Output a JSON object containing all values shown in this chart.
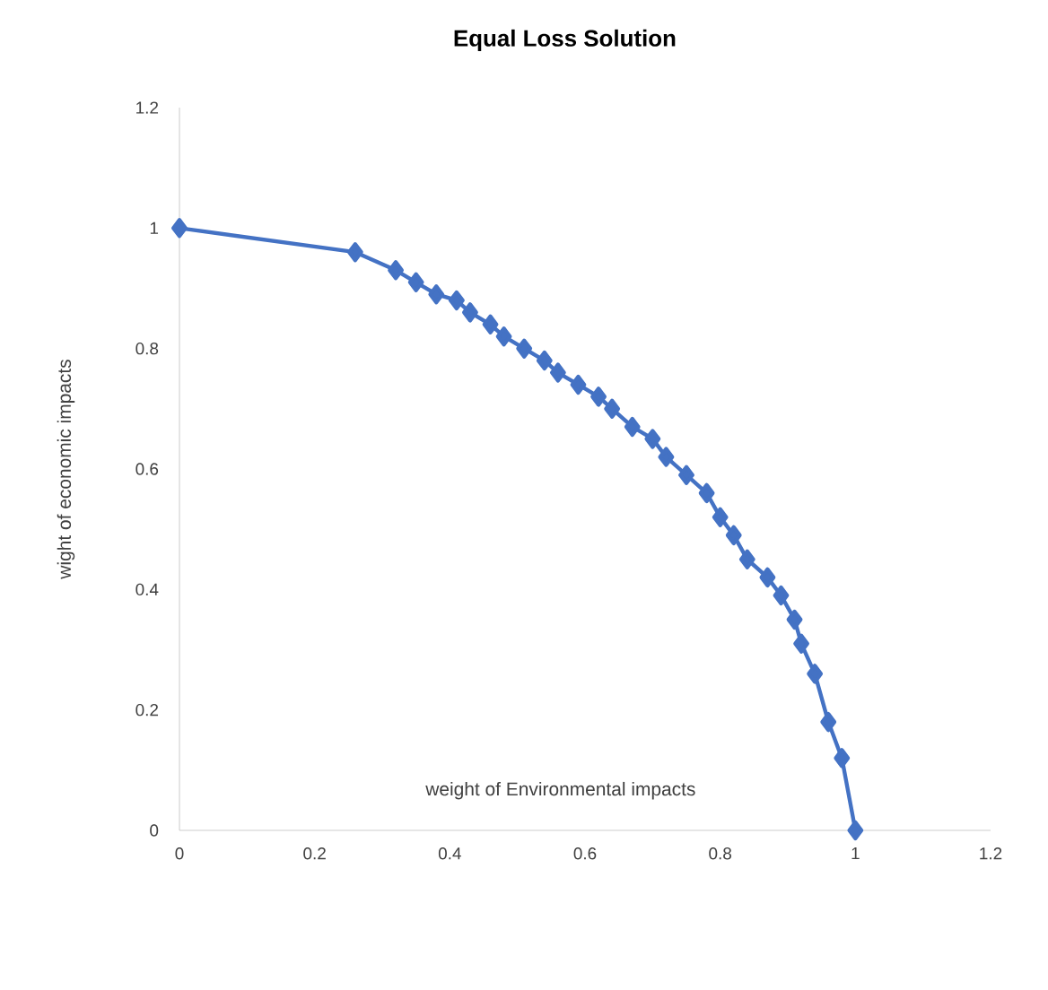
{
  "chart_data": {
    "type": "line",
    "title": "Equal Loss Solution",
    "xlabel": "weight of Environmental impacts",
    "ylabel": "wight of economic impacts",
    "x": [
      0,
      0.26,
      0.32,
      0.35,
      0.38,
      0.41,
      0.43,
      0.46,
      0.48,
      0.51,
      0.54,
      0.56,
      0.59,
      0.62,
      0.64,
      0.67,
      0.7,
      0.72,
      0.75,
      0.78,
      0.8,
      0.82,
      0.84,
      0.87,
      0.89,
      0.91,
      0.92,
      0.94,
      0.96,
      0.98,
      1
    ],
    "series": [
      {
        "color": "#4472c4",
        "values": [
          1,
          0.96,
          0.93,
          0.91,
          0.89,
          0.88,
          0.86,
          0.84,
          0.82,
          0.8,
          0.78,
          0.76,
          0.74,
          0.72,
          0.7,
          0.67,
          0.65,
          0.62,
          0.59,
          0.56,
          0.52,
          0.49,
          0.45,
          0.42,
          0.39,
          0.35,
          0.31,
          0.26,
          0.18,
          0.12,
          0
        ]
      }
    ],
    "xlim": [
      0,
      1.2
    ],
    "ylim": [
      0,
      1.2
    ],
    "xticks": [
      0,
      0.2,
      0.4,
      0.6,
      0.8,
      1,
      1.2
    ],
    "yticks": [
      0,
      0.2,
      0.4,
      0.6,
      0.8,
      1,
      1.2
    ],
    "grid": false,
    "marker": "diamond",
    "line_style": "solid"
  }
}
